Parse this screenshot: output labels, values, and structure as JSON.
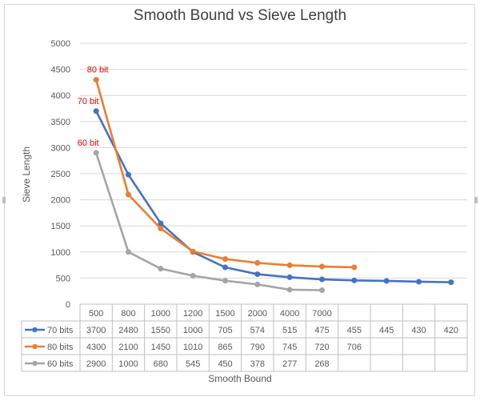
{
  "chart_data": {
    "type": "line",
    "title": "Smooth Bound vs Sieve Length",
    "xlabel": "Smooth Bound",
    "ylabel": "Sieve Length",
    "ylim": [
      0,
      5000
    ],
    "yticks": [
      0,
      500,
      1000,
      1500,
      2000,
      2500,
      3000,
      3500,
      4000,
      4500,
      5000
    ],
    "grid": true,
    "legend": "data-table",
    "categories": [
      "500",
      "800",
      "1000",
      "1200",
      "1500",
      "2000",
      "4000",
      "7000",
      "",
      "",
      "",
      ""
    ],
    "series": [
      {
        "name": "70 bits",
        "color": "#4472c4",
        "values": [
          3700,
          2480,
          1550,
          1000,
          705,
          574,
          515,
          475,
          455,
          445,
          430,
          420
        ],
        "annotation": "70 bit"
      },
      {
        "name": "80 bits",
        "color": "#ed7d31",
        "values": [
          4300,
          2100,
          1450,
          1010,
          865,
          790,
          745,
          720,
          706,
          null,
          null,
          null
        ],
        "annotation": "80 bit"
      },
      {
        "name": "60 bits",
        "color": "#a5a5a5",
        "values": [
          2900,
          1000,
          680,
          545,
          450,
          378,
          277,
          268,
          null,
          null,
          null,
          null
        ],
        "annotation": "60 bit"
      }
    ],
    "annotation_color": "#ff0000"
  }
}
